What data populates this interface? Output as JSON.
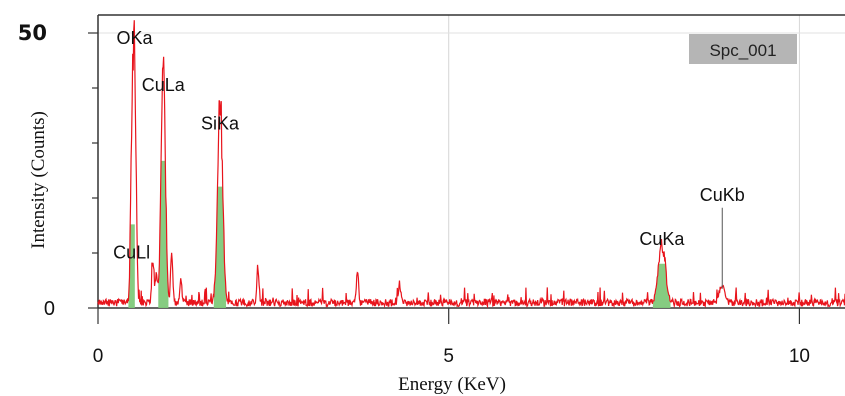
{
  "chart_data": {
    "type": "line",
    "xlabel": "Energy (KeV)",
    "ylabel": "Intensity (Counts)",
    "xlim": [
      0,
      10.65
    ],
    "ylim": [
      0,
      50
    ],
    "x_ticks": [
      "0",
      "5",
      "10"
    ],
    "x_tick_values": [
      0,
      5,
      10
    ],
    "y_ticks": [
      {
        "value": 0,
        "label": "0"
      },
      {
        "value": 50,
        "label": "50"
      }
    ],
    "y_minor_ticks": [
      10,
      20,
      30,
      40
    ],
    "grid": "vertical",
    "legend": {
      "label": "Spc_001",
      "position": "top-right",
      "box_color": "#b5b5b5"
    },
    "series_color": "#e8141c",
    "fill_color": "#7fc97a",
    "baseline_noise": 1.0,
    "peaks": [
      {
        "label": "OKa",
        "energy": 0.52,
        "height": 45.5,
        "width": 0.022,
        "filled": false
      },
      {
        "label": "CuLl",
        "energy": 0.48,
        "height": 24.0,
        "width": 0.018,
        "filled": true
      },
      {
        "label": "CuLa",
        "energy": 0.93,
        "height": 45.0,
        "width": 0.03,
        "filled": true
      },
      {
        "label": "SiKa",
        "energy": 1.74,
        "height": 36.5,
        "width": 0.035,
        "filled": true
      },
      {
        "label": "CuKa",
        "energy": 8.04,
        "height": 11.0,
        "width": 0.05,
        "filled": true
      },
      {
        "label": "CuKb",
        "energy": 8.9,
        "height": 3.0,
        "width": 0.04,
        "filled": false
      }
    ],
    "minor_peaks": [
      {
        "energy": 0.78,
        "height": 7.0
      },
      {
        "energy": 0.83,
        "height": 5.0
      },
      {
        "energy": 1.05,
        "height": 9.0
      },
      {
        "energy": 1.18,
        "height": 4.0
      },
      {
        "energy": 2.28,
        "height": 6.5
      },
      {
        "energy": 3.7,
        "height": 6.0
      },
      {
        "energy": 4.3,
        "height": 3.5
      }
    ],
    "annotations": [
      {
        "text": "OKa",
        "energy": 0.52,
        "y": 48.0
      },
      {
        "text": "CuLa",
        "energy": 0.93,
        "y": 39.5
      },
      {
        "text": "SiKa",
        "energy": 1.74,
        "y": 32.5
      },
      {
        "text": "CuLl",
        "energy": 0.48,
        "y": 9.0
      },
      {
        "text": "CuKa",
        "energy": 8.04,
        "y": 11.5
      },
      {
        "text": "CuKb",
        "energy": 8.9,
        "y": 19.5,
        "marker_line_to": 3.5
      }
    ]
  }
}
